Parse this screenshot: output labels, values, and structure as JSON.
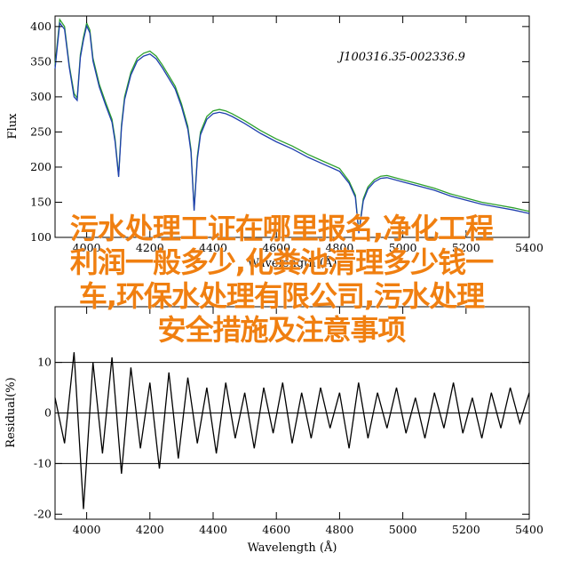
{
  "chart_data": [
    {
      "type": "line",
      "title": "J100316.35-002336.9",
      "xlabel": "Wavelength (Å)",
      "ylabel": "Flux",
      "xlim": [
        3900,
        5400
      ],
      "ylim": [
        100,
        415
      ],
      "xticks": [
        4000,
        4200,
        4400,
        4600,
        4800,
        5000,
        5200,
        5400
      ],
      "yticks": [
        100,
        150,
        200,
        250,
        300,
        350,
        400
      ],
      "series": [
        {
          "color": "#2ca02c",
          "x": [
            3900,
            3915,
            3930,
            3945,
            3960,
            3970,
            3980,
            3990,
            4000,
            4010,
            4020,
            4040,
            4060,
            4080,
            4090,
            4101,
            4110,
            4120,
            4140,
            4160,
            4180,
            4200,
            4220,
            4240,
            4260,
            4280,
            4300,
            4320,
            4330,
            4340,
            4350,
            4360,
            4380,
            4400,
            4420,
            4440,
            4460,
            4500,
            4550,
            4600,
            4650,
            4700,
            4750,
            4800,
            4830,
            4850,
            4861,
            4875,
            4890,
            4910,
            4930,
            4950,
            5000,
            5050,
            5100,
            5150,
            5200,
            5250,
            5300,
            5350,
            5400
          ],
          "y": [
            345,
            410,
            400,
            345,
            305,
            298,
            360,
            385,
            405,
            395,
            355,
            318,
            292,
            268,
            240,
            188,
            260,
            300,
            335,
            355,
            362,
            365,
            358,
            345,
            330,
            315,
            290,
            258,
            225,
            140,
            215,
            250,
            272,
            280,
            282,
            280,
            276,
            266,
            252,
            240,
            230,
            218,
            208,
            198,
            180,
            160,
            108,
            155,
            172,
            182,
            187,
            188,
            182,
            176,
            170,
            162,
            156,
            150,
            146,
            142,
            137
          ]
        },
        {
          "color": "#1f3fae",
          "x": [
            3900,
            3915,
            3930,
            3945,
            3960,
            3970,
            3980,
            3990,
            4000,
            4010,
            4020,
            4040,
            4060,
            4080,
            4090,
            4101,
            4110,
            4120,
            4140,
            4160,
            4180,
            4200,
            4220,
            4240,
            4260,
            4280,
            4300,
            4320,
            4330,
            4340,
            4350,
            4360,
            4380,
            4400,
            4420,
            4440,
            4460,
            4500,
            4550,
            4600,
            4650,
            4700,
            4750,
            4800,
            4830,
            4850,
            4861,
            4875,
            4890,
            4910,
            4930,
            4950,
            5000,
            5050,
            5100,
            5150,
            5200,
            5250,
            5300,
            5350,
            5400
          ],
          "y": [
            340,
            405,
            396,
            342,
            300,
            295,
            356,
            381,
            401,
            391,
            351,
            314,
            288,
            264,
            236,
            186,
            256,
            296,
            331,
            351,
            358,
            361,
            354,
            341,
            326,
            311,
            286,
            254,
            221,
            138,
            211,
            246,
            268,
            276,
            278,
            276,
            272,
            262,
            248,
            236,
            226,
            214,
            204,
            194,
            177,
            157,
            106,
            152,
            169,
            179,
            184,
            185,
            179,
            173,
            167,
            159,
            153,
            147,
            143,
            139,
            134
          ]
        }
      ]
    },
    {
      "type": "line",
      "xlabel": "Wavelength (Å)",
      "ylabel": "Residual(%)",
      "xlim": [
        3900,
        5400
      ],
      "ylim": [
        -21,
        21
      ],
      "xticks": [
        4000,
        4200,
        4400,
        4600,
        4800,
        5000,
        5200,
        5400
      ],
      "yticks": [
        -20,
        -10,
        0,
        10
      ],
      "hlines": [
        10,
        0,
        -10
      ],
      "series": [
        {
          "color": "#000000",
          "x": [
            3900,
            3930,
            3960,
            3990,
            4020,
            4050,
            4080,
            4110,
            4140,
            4170,
            4200,
            4230,
            4260,
            4290,
            4320,
            4350,
            4380,
            4410,
            4440,
            4470,
            4500,
            4530,
            4560,
            4590,
            4620,
            4650,
            4680,
            4710,
            4740,
            4770,
            4800,
            4830,
            4860,
            4890,
            4920,
            4950,
            4980,
            5010,
            5040,
            5070,
            5100,
            5130,
            5160,
            5190,
            5220,
            5250,
            5280,
            5310,
            5340,
            5370,
            5400
          ],
          "y": [
            3,
            -6,
            12,
            -19,
            10,
            -8,
            11,
            -12,
            9,
            -7,
            6,
            -11,
            8,
            -9,
            7,
            -6,
            5,
            -8,
            6,
            -5,
            4,
            -7,
            5,
            -4,
            6,
            -6,
            4,
            -5,
            5,
            -3,
            4,
            -7,
            6,
            -5,
            4,
            -3,
            5,
            -4,
            3,
            -5,
            4,
            -3,
            6,
            -4,
            3,
            -5,
            4,
            -3,
            5,
            -2,
            4
          ]
        }
      ]
    }
  ],
  "overlay_lines": [
    "污水处理工证在哪里报名,净化工程",
    "利润一般多少,化粪池清理多少钱一",
    "车,环保水处理有限公司,污水处理",
    "安全措施及注意事项"
  ]
}
